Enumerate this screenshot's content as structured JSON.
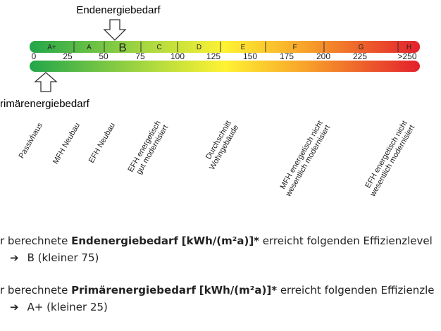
{
  "scale": {
    "title_top": "Endenergiebedarf",
    "title_bottom": "rimärenergiebedarf",
    "classes": [
      "A+",
      "A",
      "B",
      "C",
      "D",
      "E",
      "F",
      "G",
      "H"
    ],
    "ticks": [
      "0",
      "25",
      "50",
      "75",
      "100",
      "125",
      "150",
      "175",
      "200",
      "225",
      ">250"
    ],
    "building_types": [
      [
        "Passivhaus"
      ],
      [
        "MFH Neubau"
      ],
      [
        "EFH Neubau"
      ],
      [
        "EFH energetisch",
        "gut modernisiert"
      ],
      [
        "Durchschnitt",
        "Wohngebäude"
      ],
      [
        "MFH energetisch nicht",
        "wesentlich modernisiert"
      ],
      [
        "EFH energetisch nicht",
        "wesentlich modernisiert"
      ]
    ]
  },
  "results": [
    {
      "prefix": "r berechnete ",
      "term": "Endenergiebedarf",
      "unit": "[kWh/(m²a)]*",
      "suffix": " erreicht folgenden Effizienzlevel",
      "result": "B (kleiner 75)"
    },
    {
      "prefix": "r berechnete ",
      "term": "Primärenergiebedarf",
      "unit": "[kWh/(m²a)]*",
      "suffix": " erreicht folgenden Effizienzle",
      "result": "A+ (kleiner 25)"
    }
  ]
}
